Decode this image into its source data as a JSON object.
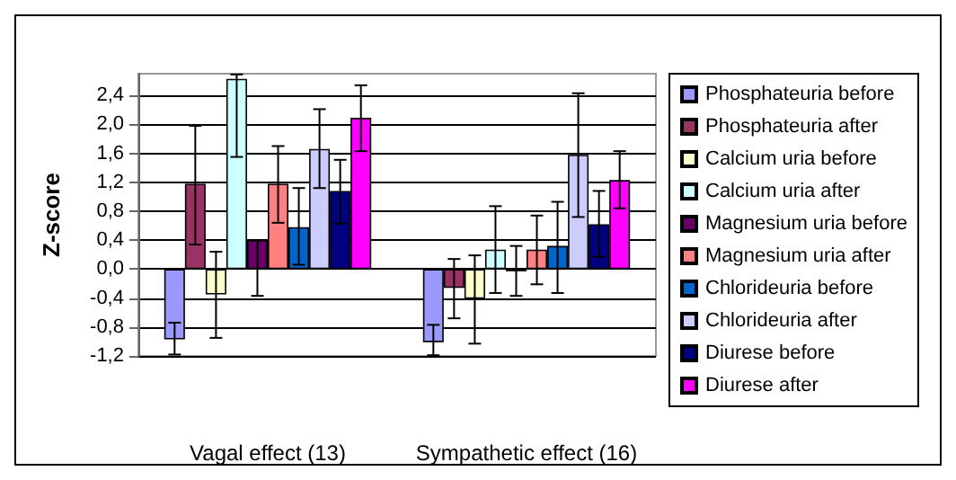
{
  "chart_data": {
    "type": "bar",
    "ylabel": "Z-score",
    "categories": [
      "Vagal effect (13)",
      "Sympathetic effect (16)"
    ],
    "series": [
      {
        "name": "Phosphateuria before",
        "color": "#9999ff",
        "values": [
          -0.97,
          -1.01
        ],
        "errors": [
          [
            -1.18,
            -0.74
          ],
          [
            -1.19,
            -0.77
          ]
        ]
      },
      {
        "name": "Phosphateuria after",
        "color": "#993366",
        "values": [
          1.18,
          -0.26
        ],
        "errors": [
          [
            0.34,
            1.98
          ],
          [
            -0.68,
            0.14
          ]
        ]
      },
      {
        "name": "Calcium uria before",
        "color": "#ffffcc",
        "values": [
          -0.35,
          -0.41
        ],
        "errors": [
          [
            -0.95,
            0.24
          ],
          [
            -1.03,
            0.19
          ]
        ]
      },
      {
        "name": "Calcium uria after",
        "color": "#ccffff",
        "values": [
          2.63,
          0.27
        ],
        "errors": [
          [
            1.55,
            2.69
          ],
          [
            -0.33,
            0.87
          ]
        ]
      },
      {
        "name": "Magnesium uria before",
        "color": "#660066",
        "values": [
          0.4,
          -0.03
        ],
        "errors": [
          [
            -0.37,
            0.4
          ],
          [
            -0.37,
            0.32
          ]
        ]
      },
      {
        "name": "Magnesium uria after",
        "color": "#ff8080",
        "values": [
          1.18,
          0.27
        ],
        "errors": [
          [
            0.64,
            1.7
          ],
          [
            -0.21,
            0.74
          ]
        ]
      },
      {
        "name": "Chlorideuria before",
        "color": "#0066cc",
        "values": [
          0.58,
          0.32
        ],
        "errors": [
          [
            0.06,
            1.12
          ],
          [
            -0.33,
            0.93
          ]
        ]
      },
      {
        "name": "Chlorideuria after",
        "color": "#ccccff",
        "values": [
          1.66,
          1.58
        ],
        "errors": [
          [
            1.12,
            2.21
          ],
          [
            0.72,
            2.43
          ]
        ]
      },
      {
        "name": "Diurese before",
        "color": "#000080",
        "values": [
          1.08,
          0.62
        ],
        "errors": [
          [
            0.63,
            1.51
          ],
          [
            0.17,
            1.08
          ]
        ]
      },
      {
        "name": "Diurese after",
        "color": "#ff00ff",
        "values": [
          2.09,
          1.23
        ],
        "errors": [
          [
            1.63,
            2.54
          ],
          [
            0.84,
            1.63
          ]
        ]
      }
    ],
    "ylim": [
      -1.2,
      2.7
    ],
    "yticks": [
      {
        "value": -1.2,
        "label": "-1,2"
      },
      {
        "value": -0.8,
        "label": "-0,8"
      },
      {
        "value": -0.4,
        "label": "-0,4"
      },
      {
        "value": 0,
        "label": "0,0"
      },
      {
        "value": 0.4,
        "label": "0,4"
      },
      {
        "value": 0.8,
        "label": "0,8"
      },
      {
        "value": 1.2,
        "label": "1,2"
      },
      {
        "value": 1.6,
        "label": "1,6"
      },
      {
        "value": 2.0,
        "label": "2,0"
      },
      {
        "value": 2.4,
        "label": "2,4"
      }
    ],
    "grid": "y",
    "legend": "right"
  }
}
